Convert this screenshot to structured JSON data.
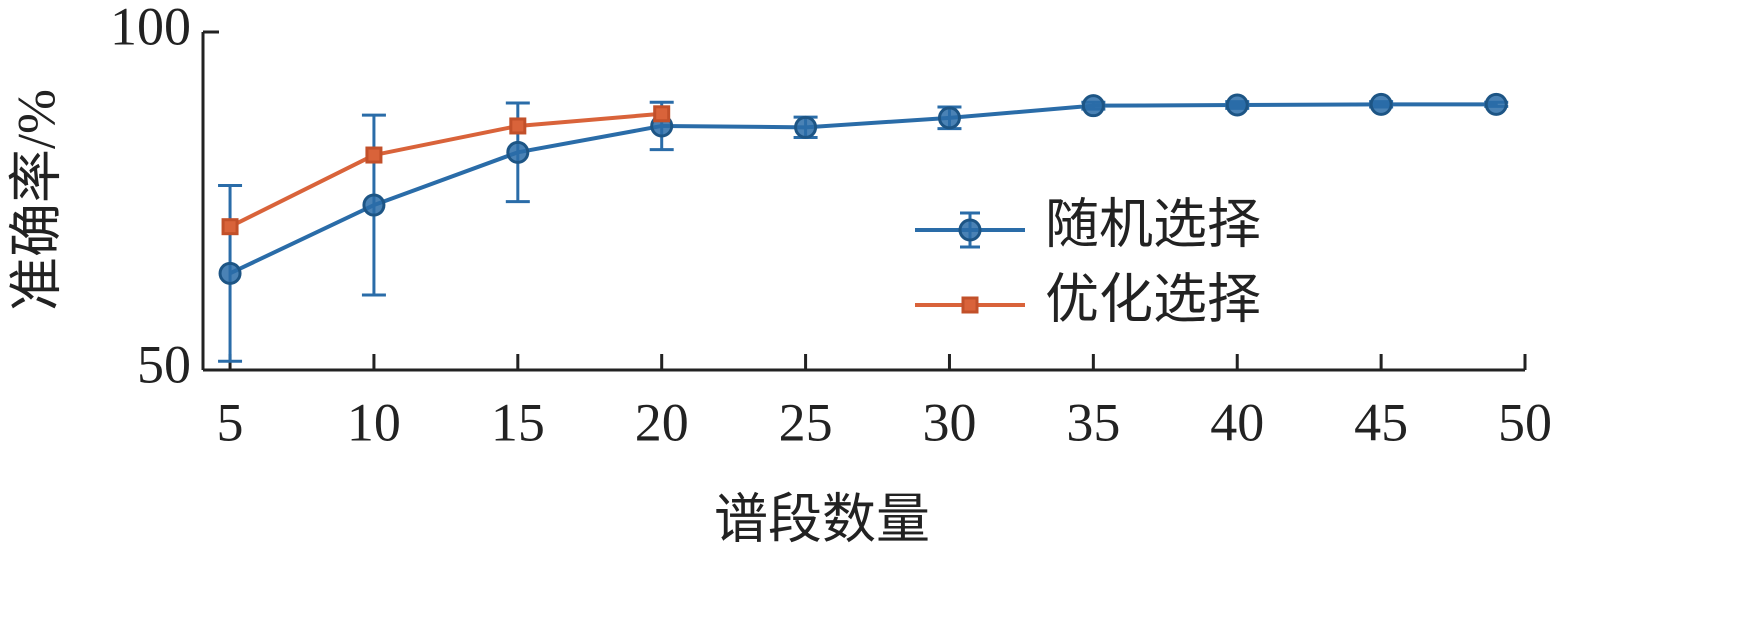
{
  "chart_data": {
    "type": "line",
    "x_label": "谱段数量",
    "y_label": "准确率/%",
    "x": [
      5,
      10,
      15,
      20,
      25,
      30,
      35,
      40,
      45,
      49
    ],
    "series": [
      {
        "name": "随机选择",
        "color": "#2a6ca8",
        "marker": "circle",
        "values": [
          64.3,
          74.4,
          82.2,
          86.1,
          85.9,
          87.3,
          89.1,
          89.2,
          89.3,
          89.3
        ],
        "errors": [
          13,
          13.3,
          7.3,
          3.5,
          1.5,
          1.6,
          0.5,
          0.5,
          0.4,
          0.3
        ]
      },
      {
        "name": "优化选择",
        "color": "#d9633a",
        "marker": "square",
        "values": [
          71.2,
          81.8,
          86.1,
          87.9,
          null,
          null,
          null,
          null,
          null,
          null
        ]
      }
    ],
    "xlim": [
      4.06,
      50
    ],
    "xticks": [
      5,
      10,
      15,
      20,
      25,
      30,
      35,
      40,
      45,
      50
    ],
    "ylim": [
      50,
      100
    ],
    "yticks": [
      50,
      100
    ],
    "grid": false,
    "legend": "right"
  }
}
